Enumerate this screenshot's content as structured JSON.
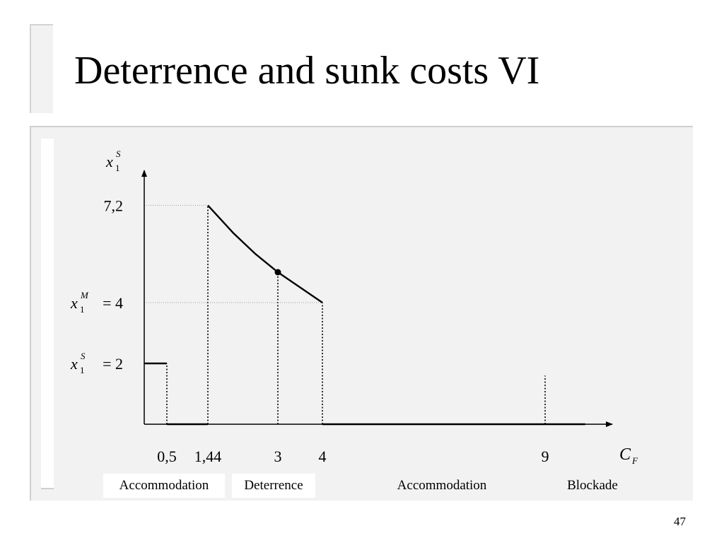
{
  "slide": {
    "title": "Deterrence and sunk costs VI",
    "page_number": "47"
  },
  "chart_data": {
    "type": "line",
    "title": "",
    "xlabel": {
      "main": "C",
      "sub": "F"
    },
    "ylabel": {
      "main": "x",
      "sub": "1",
      "sup": "S"
    },
    "xlim": [
      0,
      10
    ],
    "ylim": [
      0,
      8
    ],
    "x_ticks": [
      {
        "value": 0.5,
        "label": "0,5"
      },
      {
        "value": 1.44,
        "label": "1,44"
      },
      {
        "value": 3,
        "label": "3"
      },
      {
        "value": 4,
        "label": "4"
      },
      {
        "value": 9,
        "label": "9"
      }
    ],
    "y_ticks": [
      {
        "value": 7.2,
        "label": "7,2"
      },
      {
        "value": 4,
        "label": "= 4",
        "var": {
          "main": "x",
          "sub": "1",
          "sup": "M"
        }
      },
      {
        "value": 2,
        "label": "= 2",
        "var": {
          "main": "x",
          "sub": "1",
          "sup": "S"
        }
      }
    ],
    "series": [
      {
        "segments": [
          [
            [
              0,
              2
            ],
            [
              0.5,
              2
            ]
          ],
          [
            [
              0.5,
              0
            ],
            [
              1.44,
              0
            ]
          ],
          [
            [
              1.44,
              7.2
            ],
            [
              2,
              6.3
            ],
            [
              2.5,
              5.6
            ],
            [
              3,
              5.0
            ],
            [
              3.5,
              4.5
            ],
            [
              4,
              4
            ]
          ],
          [
            [
              4,
              0
            ],
            [
              9.9,
              0
            ]
          ]
        ]
      }
    ],
    "highlight_point": {
      "x": 3,
      "y": 5.0
    },
    "dotted_verticals": [
      {
        "x": 0.5,
        "y": 2
      },
      {
        "x": 1.44,
        "y": 7.2
      },
      {
        "x": 3,
        "y": 5.0
      },
      {
        "x": 4,
        "y": 4
      },
      {
        "x": 9,
        "y": 1.6
      }
    ],
    "dotted_horizontals": [
      {
        "y": 7.2,
        "x": 1.44
      },
      {
        "y": 4,
        "x": 4
      }
    ],
    "regions": [
      {
        "label": "Accommodation",
        "boxed": true
      },
      {
        "label": "Deterrence",
        "boxed": true
      },
      {
        "label": "Accommodation",
        "boxed": false
      },
      {
        "label": "Blockade",
        "boxed": false
      }
    ]
  }
}
